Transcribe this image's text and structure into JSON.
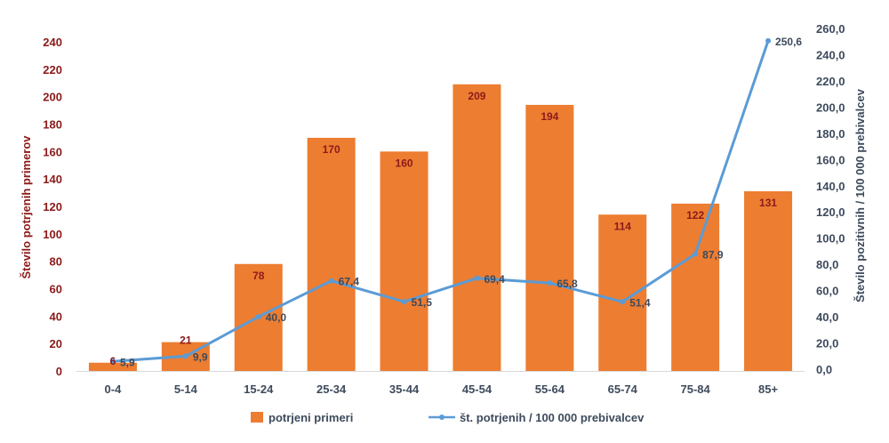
{
  "chart_data": {
    "type": "bar",
    "categories": [
      "0-4",
      "5-14",
      "15-24",
      "25-34",
      "35-44",
      "45-54",
      "55-64",
      "65-74",
      "75-84",
      "85+"
    ],
    "series": [
      {
        "name": "potrjeni primeri",
        "type": "bar",
        "axis": "left",
        "color": "#ed7d31",
        "values": [
          6,
          21,
          78,
          170,
          160,
          209,
          194,
          114,
          122,
          131
        ],
        "labels": [
          "6",
          "21",
          "78",
          "170",
          "160",
          "209",
          "194",
          "114",
          "122",
          "131"
        ]
      },
      {
        "name": "št. potrjenih / 100 000 prebivalcev",
        "type": "line",
        "axis": "right",
        "color": "#5b9bd5",
        "values": [
          5.9,
          9.9,
          40.0,
          67.4,
          51.5,
          69.4,
          65.8,
          51.4,
          87.9,
          250.6
        ],
        "labels": [
          "5,9",
          "9,9",
          "40,0",
          "67,4",
          "51,5",
          "69,4",
          "65,8",
          "51,4",
          "87,9",
          "250,6"
        ]
      }
    ],
    "ylabel_left": "Število potrjenih primerov",
    "ylabel_right": "Število pozitivnih / 100 000 prebivalcev",
    "ylim_left": [
      0,
      240
    ],
    "ylim_right": [
      0,
      260
    ],
    "yticks_left": [
      "0",
      "20",
      "40",
      "60",
      "80",
      "100",
      "120",
      "140",
      "160",
      "180",
      "200",
      "220",
      "240"
    ],
    "yticks_right": [
      "0,0",
      "20,0",
      "40,0",
      "60,0",
      "80,0",
      "100,0",
      "120,0",
      "140,0",
      "160,0",
      "180,0",
      "200,0",
      "220,0",
      "240,0",
      "260,0"
    ],
    "grid": false,
    "legend_position": "bottom",
    "left_axis_color": "#8b1a1a",
    "right_axis_color": "#3d4a5c"
  }
}
